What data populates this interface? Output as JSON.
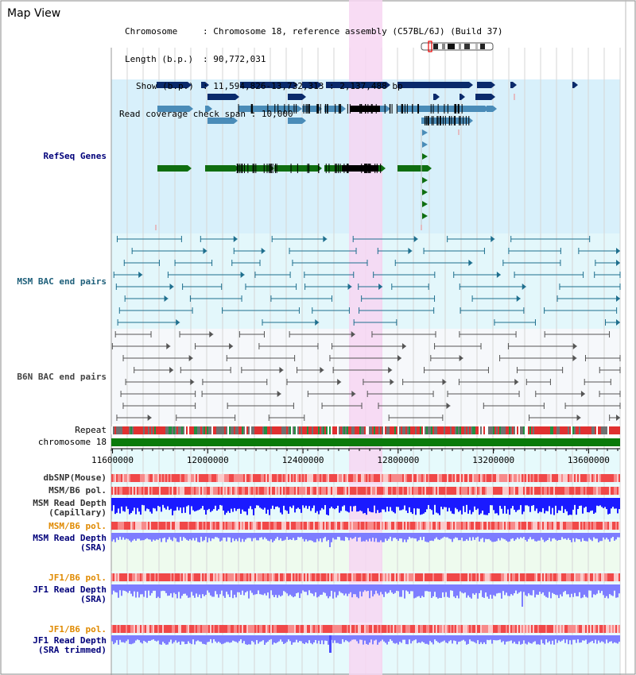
{
  "app": {
    "title": "Map View"
  },
  "info": {
    "chromosome_label": "Chromosome",
    "chromosome_value": "Chromosome 18, reference assembly (C57BL/6J) (Build 37)",
    "length_label": "Length (b.p.)",
    "length_value": "90,772,031",
    "show_label": "Show (b.p.)",
    "show_value": "11,594,826-13,732,313 : 2,137,488 bp",
    "coverage_label": "Read coverage check span",
    "coverage_value": "10,000"
  },
  "tracks": {
    "refseq": "RefSeq Genes",
    "msm_bac": "MSM BAC end pairs",
    "b6n_bac": "B6N BAC end pairs",
    "repeat": "Repeat",
    "chromosome": "chromosome 18",
    "dbsnp": "dbSNP(Mouse)",
    "msm_pol_1": "MSM/B6 pol.",
    "msm_depth_cap_1": "MSM Read Depth",
    "msm_depth_cap_2": "(Capillary)",
    "msm_pol_2": "MSM/B6 pol.",
    "msm_depth_sra_1": "MSM Read Depth",
    "msm_depth_sra_2": "(SRA)",
    "jf1_pol_1": "JF1/B6 pol.",
    "jf1_depth_1": "JF1 Read Depth",
    "jf1_depth_2": "(SRA)",
    "jf1_pol_2": "JF1/B6 pol.",
    "jf1_trim_1": "JF1 Read Depth",
    "jf1_trim_2": "(SRA trimmed)"
  },
  "axis": {
    "ticks": [
      "11600000",
      "12000000",
      "12400000",
      "12800000",
      "13200000",
      "13600000"
    ]
  },
  "colors": {
    "highlight": "#f7d6f2",
    "refseq_bg": "#d8f0fb",
    "bac_bg": "#e3f7fb",
    "b6n_bg": "#f6f8fb",
    "navy": "#0a2a6b",
    "steel": "#4a8cb8",
    "green": "#0f6e10",
    "teal": "#1e6f8e",
    "gray": "#555555",
    "chrom": "#0a7a0a",
    "blue_depth": "#1a1aff",
    "light_depth": "#7d7dff",
    "label_navy": "#00007a",
    "label_orange": "#e08a00"
  }
}
